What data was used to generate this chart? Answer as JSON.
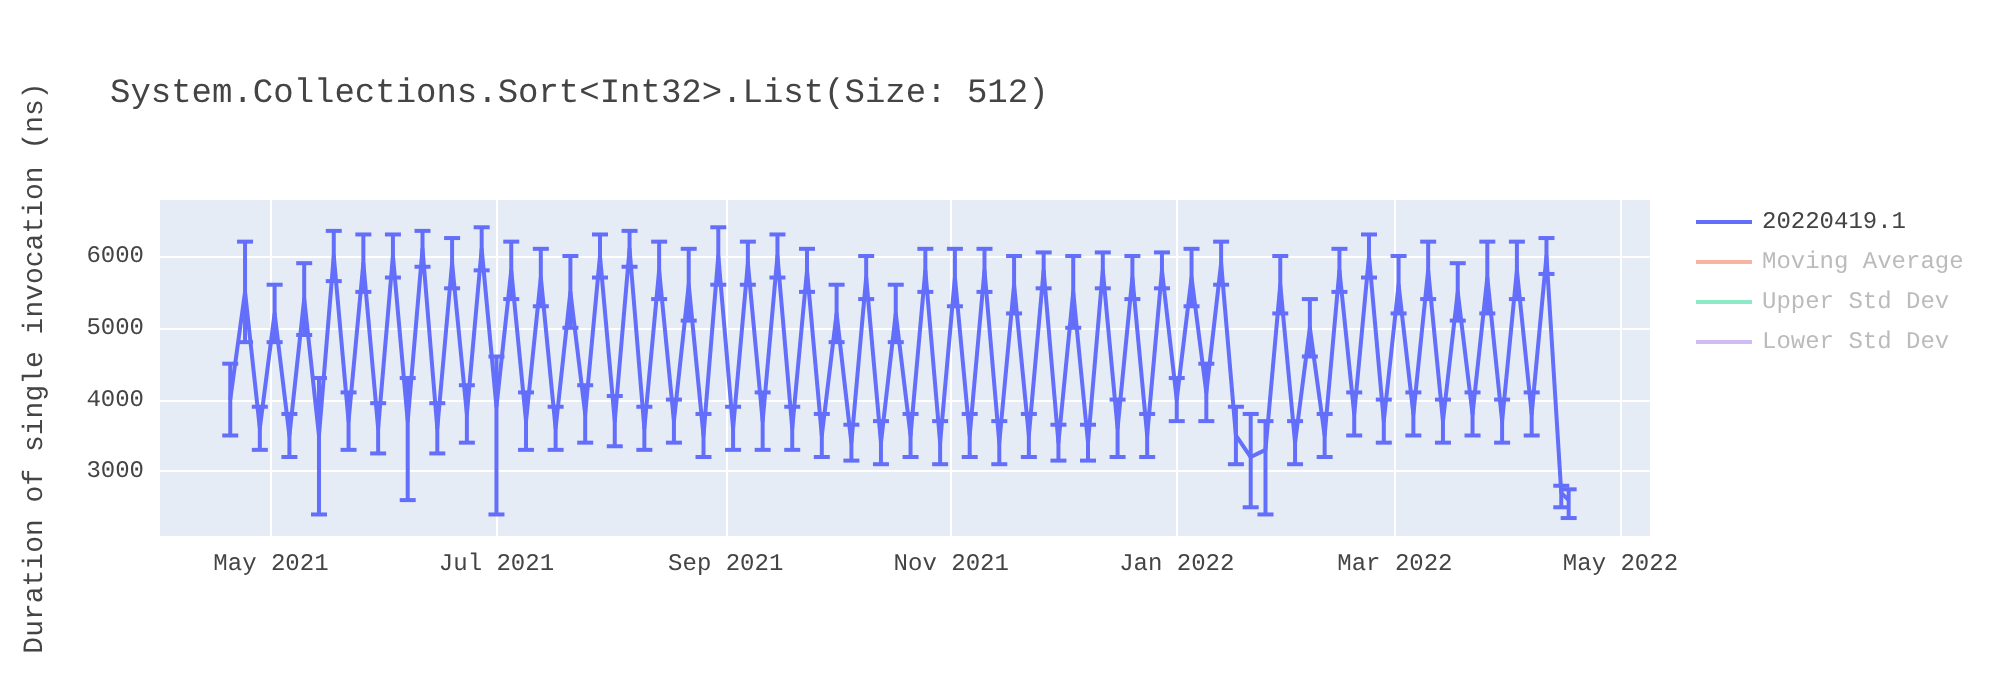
{
  "chart_data": {
    "type": "line",
    "title": "System.Collections.Sort<Int32>.List(Size: 512)",
    "ylabel": "Duration of single invocation (ns)",
    "x": [
      "2021-04-20",
      "2021-04-24",
      "2021-04-28",
      "2021-05-02",
      "2021-05-06",
      "2021-05-10",
      "2021-05-14",
      "2021-05-18",
      "2021-05-22",
      "2021-05-26",
      "2021-05-30",
      "2021-06-03",
      "2021-06-07",
      "2021-06-11",
      "2021-06-15",
      "2021-06-19",
      "2021-06-23",
      "2021-06-27",
      "2021-07-01",
      "2021-07-05",
      "2021-07-09",
      "2021-07-13",
      "2021-07-17",
      "2021-07-21",
      "2021-07-25",
      "2021-07-29",
      "2021-08-02",
      "2021-08-06",
      "2021-08-10",
      "2021-08-14",
      "2021-08-18",
      "2021-08-22",
      "2021-08-26",
      "2021-08-30",
      "2021-09-03",
      "2021-09-07",
      "2021-09-11",
      "2021-09-15",
      "2021-09-19",
      "2021-09-23",
      "2021-09-27",
      "2021-10-01",
      "2021-10-05",
      "2021-10-09",
      "2021-10-13",
      "2021-10-17",
      "2021-10-21",
      "2021-10-25",
      "2021-10-29",
      "2021-11-02",
      "2021-11-06",
      "2021-11-10",
      "2021-11-14",
      "2021-11-18",
      "2021-11-22",
      "2021-11-26",
      "2021-11-30",
      "2021-12-04",
      "2021-12-08",
      "2021-12-12",
      "2021-12-16",
      "2021-12-20",
      "2021-12-24",
      "2021-12-28",
      "2022-01-01",
      "2022-01-05",
      "2022-01-09",
      "2022-01-13",
      "2022-01-17",
      "2022-01-21",
      "2022-01-25",
      "2022-01-29",
      "2022-02-02",
      "2022-02-06",
      "2022-02-10",
      "2022-02-14",
      "2022-02-18",
      "2022-02-22",
      "2022-02-26",
      "2022-03-02",
      "2022-03-06",
      "2022-03-10",
      "2022-03-14",
      "2022-03-18",
      "2022-03-22",
      "2022-03-26",
      "2022-03-30",
      "2022-04-03",
      "2022-04-07",
      "2022-04-11",
      "2022-04-15",
      "2022-04-17"
    ],
    "series": [
      {
        "name": "20220419.1",
        "color": "#636efa",
        "values": [
          4000,
          5500,
          3600,
          5200,
          3500,
          5400,
          3500,
          6000,
          3700,
          5900,
          3600,
          6000,
          3700,
          6100,
          3600,
          5900,
          3800,
          6100,
          3900,
          5800,
          3700,
          5700,
          3600,
          5500,
          3800,
          6000,
          3700,
          6100,
          3600,
          5800,
          3700,
          5600,
          3500,
          6000,
          3600,
          5900,
          3700,
          6000,
          3600,
          5800,
          3500,
          5200,
          3400,
          5700,
          3400,
          5200,
          3500,
          5800,
          3400,
          5700,
          3500,
          5800,
          3400,
          5600,
          3500,
          5800,
          3400,
          5500,
          3400,
          5800,
          3600,
          5700,
          3500,
          5800,
          4000,
          5700,
          4100,
          5900,
          3500,
          3200,
          3300,
          5600,
          3400,
          5000,
          3500,
          5800,
          3800,
          6000,
          3700,
          5600,
          3800,
          5800,
          3700,
          5500,
          3800,
          5700,
          3700,
          5800,
          3800,
          6000,
          2700,
          2600
        ],
        "errors": [
          500,
          700,
          300,
          400,
          300,
          500,
          [
            2400,
            4300
          ],
          350,
          400,
          400,
          350,
          300,
          [
            2600,
            4300
          ],
          250,
          350,
          350,
          400,
          300,
          [
            2400,
            4600
          ],
          400,
          400,
          400,
          300,
          500,
          400,
          300,
          350,
          250,
          300,
          400,
          300,
          500,
          300,
          400,
          300,
          300,
          400,
          300,
          300,
          300,
          300,
          400,
          250,
          300,
          300,
          400,
          300,
          300,
          300,
          400,
          300,
          300,
          300,
          400,
          300,
          250,
          250,
          500,
          250,
          250,
          400,
          300,
          300,
          250,
          300,
          400,
          400,
          300,
          400,
          [
            2500,
            3800
          ],
          [
            2400,
            3700
          ],
          400,
          300,
          400,
          300,
          300,
          300,
          300,
          300,
          400,
          300,
          400,
          300,
          400,
          300,
          500,
          300,
          400,
          300,
          250,
          [
            2500,
            2800
          ],
          [
            2350,
            2750
          ]
        ]
      },
      {
        "name": "Moving Average",
        "color": "#f8b3a3",
        "values": [
          null,
          null,
          null,
          null,
          null,
          null,
          null,
          null,
          null,
          null,
          null,
          null,
          null,
          null,
          null,
          null,
          null,
          null,
          null,
          null,
          null,
          null,
          null,
          null,
          null,
          null,
          null,
          null,
          null,
          null,
          null,
          null,
          null,
          null,
          null,
          null,
          null,
          null,
          null,
          null,
          null,
          null,
          null,
          null,
          null,
          null,
          null,
          null,
          null,
          null,
          null,
          null,
          null,
          null,
          null,
          null,
          null,
          null,
          null,
          null,
          null,
          null,
          null,
          null,
          null,
          null,
          null,
          null,
          null,
          null,
          null,
          null,
          null,
          null,
          null,
          null,
          null,
          null,
          null,
          null,
          null,
          null,
          null,
          null,
          null,
          null,
          null,
          null,
          null,
          null,
          null,
          null
        ]
      },
      {
        "name": "Upper Std Dev",
        "color": "#8ceac6",
        "values": [
          null,
          null,
          null,
          null,
          null,
          null,
          null,
          null,
          null,
          null,
          null,
          null,
          null,
          null,
          null,
          null,
          null,
          null,
          null,
          null,
          null,
          null,
          null,
          null,
          null,
          null,
          null,
          null,
          null,
          null,
          null,
          null,
          null,
          null,
          null,
          null,
          null,
          null,
          null,
          null,
          null,
          null,
          null,
          null,
          null,
          null,
          null,
          null,
          null,
          null,
          null,
          null,
          null,
          null,
          null,
          null,
          null,
          null,
          null,
          null,
          null,
          null,
          null,
          null,
          null,
          null,
          null,
          null,
          null,
          null,
          null,
          null,
          null,
          null,
          null,
          null,
          null,
          null,
          null,
          null,
          null,
          null,
          null,
          null,
          null,
          null,
          null,
          null,
          null,
          null,
          null,
          null
        ]
      },
      {
        "name": "Lower Std Dev",
        "color": "#d0bdf5",
        "values": [
          null,
          null,
          null,
          null,
          null,
          null,
          null,
          null,
          null,
          null,
          null,
          null,
          null,
          null,
          null,
          null,
          null,
          null,
          null,
          null,
          null,
          null,
          null,
          null,
          null,
          null,
          null,
          null,
          null,
          null,
          null,
          null,
          null,
          null,
          null,
          null,
          null,
          null,
          null,
          null,
          null,
          null,
          null,
          null,
          null,
          null,
          null,
          null,
          null,
          null,
          null,
          null,
          null,
          null,
          null,
          null,
          null,
          null,
          null,
          null,
          null,
          null,
          null,
          null,
          null,
          null,
          null,
          null,
          null,
          null,
          null,
          null,
          null,
          null,
          null,
          null,
          null,
          null,
          null,
          null,
          null,
          null,
          null,
          null,
          null,
          null,
          null,
          null,
          null,
          null,
          null,
          null
        ]
      }
    ],
    "xlim": [
      "2021-04-01",
      "2022-05-09"
    ],
    "xticks": [
      {
        "value": "2021-05-01",
        "label": "May 2021"
      },
      {
        "value": "2021-07-01",
        "label": "Jul 2021"
      },
      {
        "value": "2021-09-01",
        "label": "Sep 2021"
      },
      {
        "value": "2021-11-01",
        "label": "Nov 2021"
      },
      {
        "value": "2022-01-01",
        "label": "Jan 2022"
      },
      {
        "value": "2022-03-01",
        "label": "Mar 2022"
      },
      {
        "value": "2022-05-01",
        "label": "May 2022"
      }
    ],
    "ylim": [
      2100,
      6780
    ],
    "yticks": [
      3000,
      4000,
      5000,
      6000
    ],
    "grid": true,
    "legend": "top right"
  }
}
